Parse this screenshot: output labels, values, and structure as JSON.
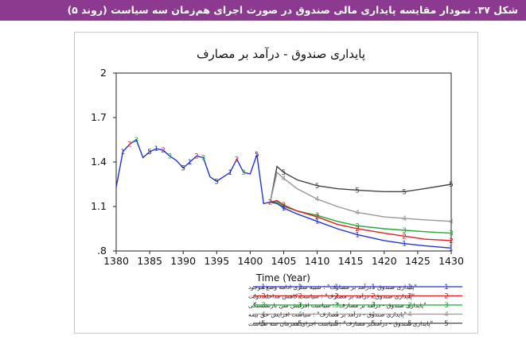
{
  "caption": "شکل ۳۷. نمودار مقایسه پایداری مالی صندوق در صورت اجرای هم‌زمان سه سیاست (روند ۵)",
  "chart_data": {
    "type": "line",
    "title": "پایداری صندوق - درآمد بر مصارف",
    "xlabel": "Time (Year)",
    "ylabel": "",
    "xlim": [
      1380,
      1430
    ],
    "ylim": [
      0.8,
      2.0
    ],
    "x_ticks": [
      1380,
      1385,
      1390,
      1395,
      1400,
      1405,
      1410,
      1415,
      1420,
      1425,
      1430
    ],
    "x_tick_labels": [
      "1380",
      "1385",
      "1390",
      "1395",
      "1400",
      "1405",
      "1410",
      "1415",
      "1420",
      "1425",
      "1430"
    ],
    "y_ticks": [
      0.8,
      1.1,
      1.4,
      1.7,
      2.0
    ],
    "y_tick_labels": [
      ".8",
      "1.1",
      "1.4",
      "1.7",
      "2"
    ],
    "grid": false,
    "legend_position": "bottom",
    "history": {
      "x": [
        1380,
        1381,
        1382,
        1383,
        1384,
        1385,
        1386,
        1387,
        1388,
        1389,
        1390,
        1391,
        1392,
        1393,
        1394,
        1395,
        1396,
        1397,
        1398,
        1399,
        1400,
        1401,
        1402,
        1403
      ],
      "y": [
        1.23,
        1.47,
        1.52,
        1.55,
        1.43,
        1.47,
        1.49,
        1.48,
        1.44,
        1.41,
        1.36,
        1.4,
        1.44,
        1.43,
        1.3,
        1.27,
        1.3,
        1.33,
        1.42,
        1.33,
        1.32,
        1.45,
        1.12,
        1.13
      ]
    },
    "series": [
      {
        "name": "\"پایداری صندوق - درآمد بر مصارف\" : شبیه سازی ادامه وضع موجود",
        "marker": "1",
        "color": "#2233dd",
        "x": [
          1403,
          1404,
          1405,
          1407,
          1410,
          1413,
          1416,
          1420,
          1423,
          1426,
          1430
        ],
        "y": [
          1.13,
          1.12,
          1.09,
          1.05,
          1.0,
          0.95,
          0.91,
          0.87,
          0.85,
          0.835,
          0.82
        ]
      },
      {
        "name": "\"پایداری صندوق - درآمد بر مصارف\" : سیاست کاهش مداخله دولت",
        "marker": "2",
        "color": "#e02020",
        "x": [
          1403,
          1404,
          1405,
          1407,
          1410,
          1413,
          1416,
          1420,
          1423,
          1426,
          1430
        ],
        "y": [
          1.13,
          1.14,
          1.11,
          1.07,
          1.03,
          0.98,
          0.95,
          0.92,
          0.9,
          0.88,
          0.87
        ]
      },
      {
        "name": "\"پایداری صندوق - درآمد بر مصارف\" : سیاست افزایش سن بازنشستگی",
        "marker": "3",
        "color": "#22aa33",
        "x": [
          1403,
          1404,
          1405,
          1407,
          1410,
          1413,
          1416,
          1420,
          1423,
          1426,
          1430
        ],
        "y": [
          1.13,
          1.13,
          1.1,
          1.07,
          1.04,
          1.0,
          0.97,
          0.95,
          0.94,
          0.93,
          0.92
        ]
      },
      {
        "name": "\"پایداری صندوق - درآمد بر مصارف\" : سیاست افزایش حق بیمه",
        "marker": "4",
        "color": "#999999",
        "x": [
          1403,
          1404,
          1405,
          1407,
          1410,
          1413,
          1416,
          1420,
          1423,
          1426,
          1430
        ],
        "y": [
          1.13,
          1.33,
          1.29,
          1.22,
          1.15,
          1.1,
          1.06,
          1.03,
          1.02,
          1.01,
          1.0
        ]
      },
      {
        "name": "\"پایداری صندوق - درآمد بر مصارف\" : سیاست اجرای همزمان سه سیاست",
        "marker": "5",
        "color": "#444444",
        "x": [
          1403,
          1404,
          1405,
          1407,
          1410,
          1413,
          1416,
          1420,
          1423,
          1426,
          1430
        ],
        "y": [
          1.13,
          1.37,
          1.33,
          1.28,
          1.24,
          1.22,
          1.21,
          1.2,
          1.2,
          1.22,
          1.25
        ]
      }
    ],
    "history_markers": [
      {
        "x": 1381,
        "y": 1.47,
        "label": "1"
      },
      {
        "x": 1382,
        "y": 1.52,
        "label": "2"
      },
      {
        "x": 1383,
        "y": 1.55,
        "label": "3"
      },
      {
        "x": 1385,
        "y": 1.47,
        "label": "5"
      },
      {
        "x": 1386,
        "y": 1.49,
        "label": "1"
      },
      {
        "x": 1387,
        "y": 1.48,
        "label": "2"
      },
      {
        "x": 1388,
        "y": 1.44,
        "label": "3"
      },
      {
        "x": 1390,
        "y": 1.36,
        "label": "5"
      },
      {
        "x": 1391,
        "y": 1.4,
        "label": "1"
      },
      {
        "x": 1392,
        "y": 1.44,
        "label": "2"
      },
      {
        "x": 1393,
        "y": 1.43,
        "label": "3"
      },
      {
        "x": 1395,
        "y": 1.27,
        "label": "5"
      },
      {
        "x": 1397,
        "y": 1.33,
        "label": "1"
      },
      {
        "x": 1398,
        "y": 1.42,
        "label": "2"
      },
      {
        "x": 1399,
        "y": 1.33,
        "label": "3"
      },
      {
        "x": 1401,
        "y": 1.45,
        "label": "5"
      },
      {
        "x": 1403,
        "y": 1.13,
        "label": "2"
      }
    ]
  }
}
